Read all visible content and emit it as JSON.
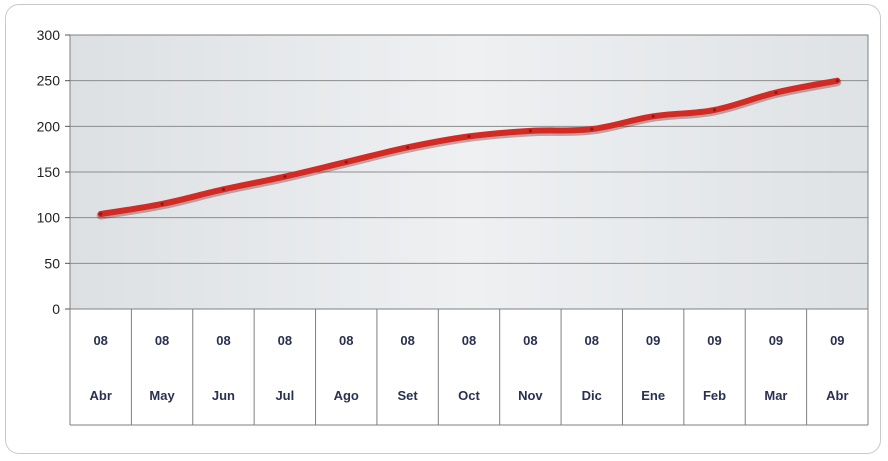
{
  "chart_data": {
    "type": "line",
    "title": "",
    "xlabel": "",
    "ylabel": "",
    "ylim": [
      0,
      300
    ],
    "yticks": [
      0,
      50,
      100,
      150,
      200,
      250,
      300
    ],
    "grid": true,
    "legend": "none",
    "categories": [
      {
        "year": "08",
        "month": "Abr"
      },
      {
        "year": "08",
        "month": "May"
      },
      {
        "year": "08",
        "month": "Jun"
      },
      {
        "year": "08",
        "month": "Jul"
      },
      {
        "year": "08",
        "month": "Ago"
      },
      {
        "year": "08",
        "month": "Set"
      },
      {
        "year": "08",
        "month": "Oct"
      },
      {
        "year": "08",
        "month": "Nov"
      },
      {
        "year": "08",
        "month": "Dic"
      },
      {
        "year": "09",
        "month": "Ene"
      },
      {
        "year": "09",
        "month": "Feb"
      },
      {
        "year": "09",
        "month": "Mar"
      },
      {
        "year": "09",
        "month": "Abr"
      }
    ],
    "series": [
      {
        "values": [
          104,
          115,
          131,
          145,
          161,
          177,
          189,
          195,
          197,
          211,
          218,
          237,
          250
        ]
      }
    ],
    "colors": {
      "line": "#d42a24",
      "line_shadow": "#7a1010",
      "plot_background": "#e6e9ec",
      "gridline": "#8d8d8d",
      "category_text": "#2a3150"
    }
  }
}
